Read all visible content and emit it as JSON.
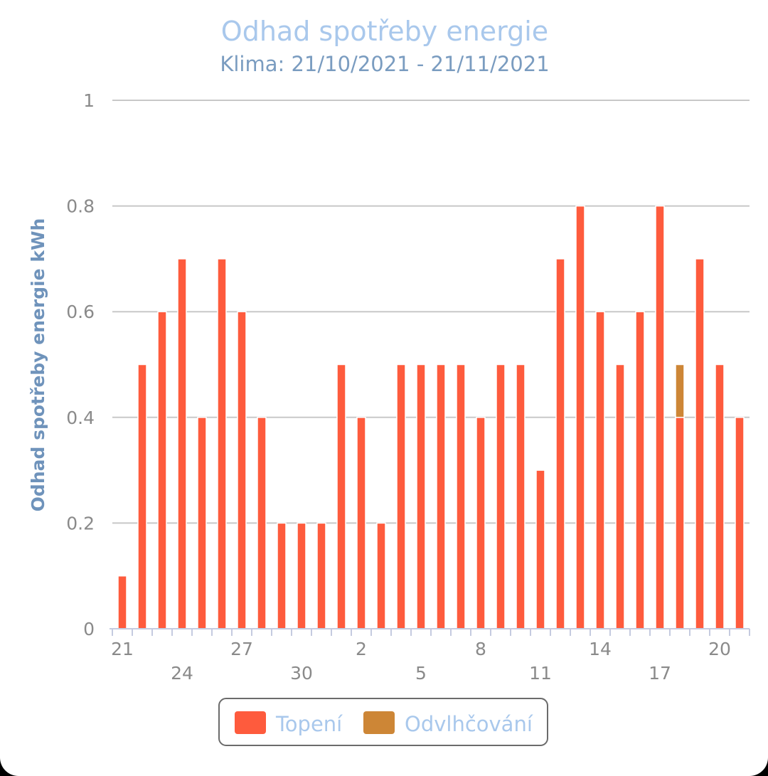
{
  "chart_data": {
    "type": "bar",
    "stacked": true,
    "title": "Odhad spotřeby energie",
    "subtitle": "Klima: 21/10/2021 - 21/11/2021",
    "ylabel": "Odhad spotřeby energie kWh",
    "xlabel": "",
    "ylim": [
      0,
      1
    ],
    "yticks": [
      "0",
      "0.2",
      "0.4",
      "0.6",
      "0.8",
      "1"
    ],
    "grid": true,
    "legend_position": "bottom-center",
    "categories": [
      "21",
      "22",
      "23",
      "24",
      "25",
      "26",
      "27",
      "28",
      "29",
      "30",
      "31",
      "1",
      "2",
      "3",
      "4",
      "5",
      "6",
      "7",
      "8",
      "9",
      "10",
      "11",
      "12",
      "13",
      "14",
      "15",
      "16",
      "17",
      "18",
      "19",
      "20",
      "21"
    ],
    "xtick_labels_row1": [
      "21",
      "27",
      "2",
      "8",
      "14",
      "20"
    ],
    "xtick_labels_row2": [
      "24",
      "30",
      "5",
      "11",
      "17"
    ],
    "series": [
      {
        "name": "Topení",
        "color": "#fe5b3d",
        "values": [
          0.1,
          0.5,
          0.6,
          0.7,
          0.4,
          0.7,
          0.6,
          0.4,
          0.2,
          0.2,
          0.2,
          0.5,
          0.4,
          0.2,
          0.5,
          0.5,
          0.5,
          0.5,
          0.4,
          0.5,
          0.5,
          0.3,
          0.7,
          0.8,
          0.6,
          0.5,
          0.6,
          0.8,
          0.4,
          0.7,
          0.5,
          0.4
        ]
      },
      {
        "name": "Odvlhčování",
        "color": "#cd8636",
        "values": [
          0,
          0,
          0,
          0,
          0,
          0,
          0,
          0,
          0,
          0,
          0,
          0,
          0,
          0,
          0,
          0,
          0,
          0,
          0,
          0,
          0,
          0,
          0,
          0,
          0,
          0,
          0,
          0,
          0.1,
          0,
          0,
          0
        ]
      }
    ]
  },
  "legend": {
    "items": [
      {
        "label": "Topení",
        "color": "#fe5b3d"
      },
      {
        "label": "Odvlhčování",
        "color": "#cd8636"
      }
    ]
  }
}
